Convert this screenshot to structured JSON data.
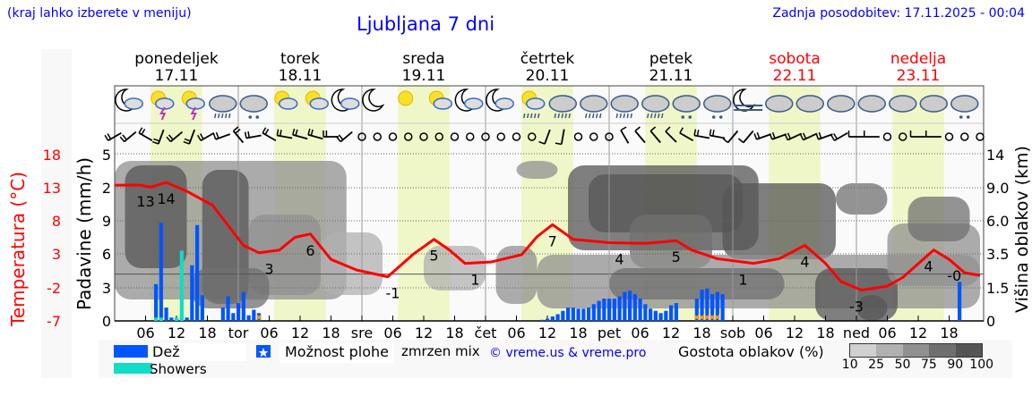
{
  "header": {
    "left_note": "(kraj lahko izberete v meniju)",
    "title": "Ljubljana 7 dni",
    "updated": "Zadnja posodobitev: 17.11.2025 - 00:04"
  },
  "days": [
    {
      "name": "ponedeljek",
      "date": "17.11",
      "weekend": false
    },
    {
      "name": "torek",
      "date": "18.11",
      "weekend": false
    },
    {
      "name": "sreda",
      "date": "19.11",
      "weekend": false
    },
    {
      "name": "četrtek",
      "date": "20.11",
      "weekend": false
    },
    {
      "name": "petek",
      "date": "21.11",
      "weekend": false
    },
    {
      "name": "sobota",
      "date": "22.11",
      "weekend": true
    },
    {
      "name": "nedelja",
      "date": "23.11",
      "weekend": true
    }
  ],
  "weather_icons": [
    "moon-cloud",
    "sun-thunder",
    "sun-thunder",
    "cloud-rain",
    "cloud-sleet",
    "sun-cloud",
    "sun-cloud",
    "moon-cloud",
    "moon",
    "sun",
    "sun-cloud",
    "moon-cloud",
    "moon-cloud",
    "sun-cloud-drizzle",
    "cloud-rain",
    "cloud-rain",
    "cloud-rain",
    "cloud-rain",
    "cloud-sleet",
    "cloud-snow",
    "moon-fog",
    "cloud",
    "cloud",
    "cloud",
    "cloud",
    "cloud",
    "cloud",
    "cloud-snow"
  ],
  "wind_barbs": [
    {
      "dir": 240,
      "kt": 10
    },
    {
      "dir": 230,
      "kt": 10
    },
    {
      "dir": 300,
      "kt": 10
    },
    {
      "dir": 200,
      "kt": 10
    },
    {
      "dir": 230,
      "kt": 10
    },
    {
      "dir": 200,
      "kt": 10
    },
    {
      "dir": 240,
      "kt": 10
    },
    {
      "dir": 250,
      "kt": 10
    },
    {
      "dir": 320,
      "kt": 10
    },
    {
      "dir": 260,
      "kt": 10
    },
    {
      "dir": 300,
      "kt": 10
    },
    {
      "dir": 280,
      "kt": 10
    },
    {
      "dir": 285,
      "kt": 10
    },
    {
      "dir": 285,
      "kt": 10
    },
    {
      "dir": 270,
      "kt": 10
    },
    {
      "dir": 230,
      "kt": 10
    },
    "calm",
    "calm",
    "calm",
    "calm",
    "calm",
    "calm",
    "calm",
    "calm",
    "calm",
    "calm",
    "calm",
    "calm",
    {
      "dir": 200,
      "kt": 5
    },
    {
      "dir": 190,
      "kt": 5
    },
    "calm",
    "calm",
    "calm",
    {
      "dir": 330,
      "kt": 5
    },
    {
      "dir": 320,
      "kt": 5
    },
    {
      "dir": 320,
      "kt": 5
    },
    {
      "dir": 315,
      "kt": 5
    },
    {
      "dir": 300,
      "kt": 5
    },
    {
      "dir": 280,
      "kt": 10
    },
    {
      "dir": 280,
      "kt": 10
    },
    {
      "dir": 220,
      "kt": 5
    },
    {
      "dir": 220,
      "kt": 5
    },
    {
      "dir": 250,
      "kt": 10
    },
    {
      "dir": 250,
      "kt": 10
    },
    {
      "dir": 245,
      "kt": 10
    },
    {
      "dir": 245,
      "kt": 10
    },
    {
      "dir": 250,
      "kt": 10
    },
    {
      "dir": 240,
      "kt": 10
    },
    {
      "dir": 270,
      "kt": 5
    },
    {
      "dir": 270,
      "kt": 5
    },
    "calm",
    "calm",
    {
      "dir": 270,
      "kt": 5
    },
    {
      "dir": 270,
      "kt": 5
    },
    "calm",
    "calm",
    "calm"
  ],
  "chart_data": {
    "type": "meteogram",
    "hours_span": [
      0,
      168
    ],
    "daylight_hours": [
      7,
      17
    ],
    "x_tick_labels": [
      "06",
      "12",
      "18",
      "tor",
      "06",
      "12",
      "18",
      "sre",
      "06",
      "12",
      "18",
      "čet",
      "06",
      "12",
      "18",
      "pet",
      "06",
      "12",
      "18",
      "sob",
      "06",
      "12",
      "18",
      "ned",
      "06",
      "12",
      "18"
    ],
    "temperature": {
      "ylabel": "Temperatura (°C)",
      "ticks": [
        "18",
        "13",
        "8",
        "3",
        "-2",
        "-7"
      ],
      "ylim": [
        -7,
        18
      ],
      "color": "#ff0000",
      "points": [
        [
          0,
          13.3
        ],
        [
          5,
          13.3
        ],
        [
          7,
          13.0
        ],
        [
          10,
          13.7
        ],
        [
          14,
          12.4
        ],
        [
          19,
          10.3
        ],
        [
          21,
          8.3
        ],
        [
          25,
          4.3
        ],
        [
          28,
          3.2
        ],
        [
          32,
          3.6
        ],
        [
          35,
          5.5
        ],
        [
          38,
          6.0
        ],
        [
          42,
          2.2
        ],
        [
          47,
          0.6
        ],
        [
          53,
          -0.4
        ],
        [
          58,
          3.0
        ],
        [
          62,
          5.2
        ],
        [
          65,
          3.6
        ],
        [
          68,
          1.6
        ],
        [
          73,
          1.8
        ],
        [
          79,
          2.9
        ],
        [
          82,
          5.6
        ],
        [
          85,
          7.4
        ],
        [
          89,
          5.2
        ],
        [
          96,
          4.7
        ],
        [
          103,
          4.6
        ],
        [
          109,
          5.0
        ],
        [
          112,
          3.6
        ],
        [
          117,
          2.3
        ],
        [
          124,
          1.6
        ],
        [
          129,
          2.3
        ],
        [
          134,
          4.3
        ],
        [
          138,
          1.6
        ],
        [
          141,
          -1.1
        ],
        [
          145,
          -2.4
        ],
        [
          150,
          -1.8
        ],
        [
          153,
          -0.5
        ],
        [
          159,
          3.6
        ],
        [
          162,
          2.2
        ],
        [
          165,
          0.2
        ],
        [
          168,
          -0.2
        ]
      ],
      "labels": [
        [
          6,
          "13"
        ],
        [
          10,
          "14"
        ],
        [
          30,
          "3"
        ],
        [
          38,
          "6"
        ],
        [
          54,
          "-1"
        ],
        [
          62,
          "5"
        ],
        [
          70,
          "1"
        ],
        [
          85,
          "7"
        ],
        [
          98,
          "4"
        ],
        [
          109,
          "5"
        ],
        [
          122,
          "1"
        ],
        [
          134,
          "4"
        ],
        [
          144,
          "-3"
        ],
        [
          158,
          "4"
        ],
        [
          163,
          "-0"
        ]
      ]
    },
    "precipitation": {
      "ylabel": "Padavine (mm/h)",
      "ticks": [
        "5",
        "2",
        "9",
        "6",
        "3",
        "0"
      ],
      "ylim": [
        0,
        1.5
      ],
      "rain": [
        [
          8,
          0.33
        ],
        [
          9,
          0.88
        ],
        [
          10,
          0.12
        ],
        [
          11,
          0.03
        ],
        [
          13,
          0.03
        ],
        [
          14,
          0.03
        ],
        [
          15,
          0.5
        ],
        [
          16,
          0.86
        ],
        [
          17,
          0.23
        ],
        [
          21,
          0.12
        ],
        [
          22,
          0.22
        ],
        [
          23,
          0.07
        ],
        [
          24,
          0.16
        ],
        [
          25,
          0.26
        ],
        [
          26,
          0.05
        ],
        [
          27,
          0.1
        ],
        [
          28,
          0.07
        ],
        [
          83,
          0.01
        ],
        [
          84,
          0.02
        ],
        [
          85,
          0.04
        ],
        [
          86,
          0.06
        ],
        [
          87,
          0.09
        ],
        [
          88,
          0.12
        ],
        [
          89,
          0.12
        ],
        [
          90,
          0.11
        ],
        [
          91,
          0.11
        ],
        [
          92,
          0.12
        ],
        [
          93,
          0.15
        ],
        [
          94,
          0.18
        ],
        [
          95,
          0.2
        ],
        [
          96,
          0.2
        ],
        [
          97,
          0.2
        ],
        [
          98,
          0.22
        ],
        [
          99,
          0.26
        ],
        [
          100,
          0.27
        ],
        [
          101,
          0.24
        ],
        [
          102,
          0.2
        ],
        [
          103,
          0.15
        ],
        [
          104,
          0.11
        ],
        [
          105,
          0.09
        ],
        [
          106,
          0.07
        ],
        [
          107,
          0.09
        ],
        [
          108,
          0.14
        ],
        [
          109,
          0.16
        ],
        [
          113,
          0.2
        ],
        [
          114,
          0.28
        ],
        [
          115,
          0.29
        ],
        [
          116,
          0.24
        ],
        [
          117,
          0.26
        ],
        [
          118,
          0.24
        ],
        [
          164,
          0.35
        ]
      ],
      "showers": [
        [
          8,
          0.03
        ],
        [
          9,
          0.03
        ],
        [
          12,
          0.03
        ],
        [
          13,
          0.63
        ]
      ],
      "mixed_hours": [
        28,
        113,
        114,
        115,
        116,
        117
      ],
      "rain_color": "#0055ff",
      "showers_color": "#11dcc8",
      "mixed_color": "#ffa500"
    },
    "cloud_height": {
      "ylabel": "Višina oblakov (km)",
      "ticks": [
        "14",
        "9.0",
        "6.0",
        "3.5",
        "1.5",
        "0"
      ]
    },
    "cloud_density": {
      "label": "Gostota oblakov (%)",
      "scale": [
        "10",
        "25",
        "50",
        "75",
        "90",
        "100"
      ],
      "colors": [
        "#d0d0d0",
        "#b0b0b0",
        "#909090",
        "#707070",
        "#555555"
      ]
    },
    "legend": {
      "rain": "Dež",
      "showers": "Showers",
      "possible_showers": "Možnost plohe",
      "frozen_mix": "zmrzen mix",
      "credit": "© vreme.us & vreme.pro"
    }
  }
}
